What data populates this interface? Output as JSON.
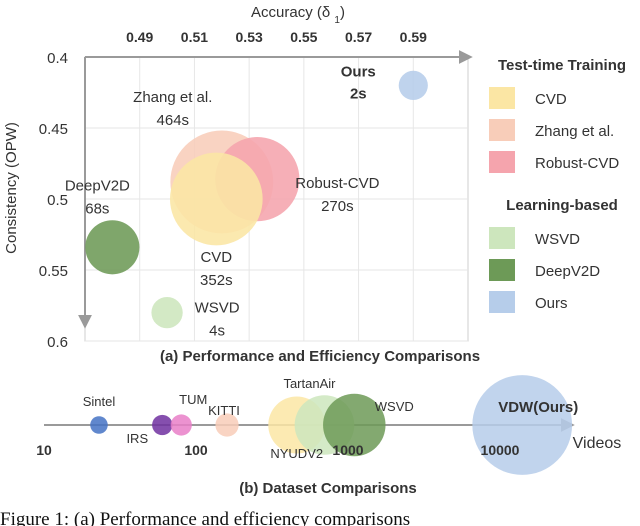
{
  "chart_data": [
    {
      "type": "scatter",
      "caption": "(a) Performance and Efficiency Comparisons",
      "xlabel": "Accuracy (δ1)",
      "ylabel": "Consistency (OPW)",
      "x_ticks": [
        "0.49",
        "0.51",
        "0.53",
        "0.55",
        "0.57",
        "0.59"
      ],
      "y_ticks": [
        "0.4",
        "0.45",
        "0.5",
        "0.55",
        "0.6"
      ],
      "xlim": [
        0.47,
        0.61
      ],
      "ylim": [
        0.6,
        0.4
      ],
      "points": [
        {
          "name": "Ours",
          "time": "2s",
          "x": 0.59,
          "y": 0.42,
          "time_s": 2,
          "group": "learning",
          "color": "#b6cdea"
        },
        {
          "name": "Zhang et al.",
          "time": "464s",
          "x": 0.52,
          "y": 0.488,
          "time_s": 464,
          "group": "ttt",
          "color": "#f8cdb9"
        },
        {
          "name": "Robust-CVD",
          "time": "270s",
          "x": 0.533,
          "y": 0.486,
          "time_s": 270,
          "group": "ttt",
          "color": "#f5a4ad"
        },
        {
          "name": "CVD",
          "time": "352s",
          "x": 0.518,
          "y": 0.5,
          "time_s": 352,
          "group": "ttt",
          "color": "#fbe6a4"
        },
        {
          "name": "DeepV2D",
          "time": "68s",
          "x": 0.48,
          "y": 0.534,
          "time_s": 68,
          "group": "learning",
          "color": "#6d9a57"
        },
        {
          "name": "WSVD",
          "time": "4s",
          "x": 0.5,
          "y": 0.58,
          "time_s": 4,
          "group": "learning",
          "color": "#cde6bd"
        }
      ],
      "legend": {
        "groups": [
          {
            "title": "Test-time Training",
            "color": "#7030a0",
            "items": [
              {
                "label": "CVD",
                "color": "#fbe6a4"
              },
              {
                "label": "Zhang et al.",
                "color": "#f8cdb9"
              },
              {
                "label": "Robust-CVD",
                "color": "#f5a4ad"
              }
            ]
          },
          {
            "title": "Learning-based",
            "color": "#2e75b6",
            "items": [
              {
                "label": "WSVD",
                "color": "#cde6bd"
              },
              {
                "label": "DeepV2D",
                "color": "#6d9a57"
              },
              {
                "label": "Ours",
                "color": "#b6cdea"
              }
            ]
          }
        ]
      },
      "grid": true,
      "highlight_color": "#e8262a"
    },
    {
      "type": "scatter",
      "caption": "(b) Dataset Comparisons",
      "xlabel": "Videos",
      "x_scale": "log",
      "x_ticks": [
        "10",
        "100",
        "1000",
        "10000"
      ],
      "tick_values": [
        10,
        100,
        1000,
        10000
      ],
      "datasets": [
        {
          "name": "Sintel",
          "videos": 23,
          "color": "#4472c4"
        },
        {
          "name": "IRS",
          "videos": 60,
          "color": "#7030a0"
        },
        {
          "name": "TUM",
          "videos": 80,
          "color": "#e97fc8"
        },
        {
          "name": "KITTI",
          "videos": 160,
          "color": "#f8cdb9"
        },
        {
          "name": "NYUDV2",
          "videos": 460,
          "color": "#fbe6a4"
        },
        {
          "name": "TartanAir",
          "videos": 700,
          "color": "#cde6bd"
        },
        {
          "name": "WSVD",
          "videos": 1100,
          "color": "#6d9a57"
        },
        {
          "name": "VDW(Ours)",
          "videos": 14000,
          "color": "#b6cdea"
        }
      ]
    }
  ],
  "figure_caption": "Figure 1: (a) Performance and efficiency comparisons"
}
